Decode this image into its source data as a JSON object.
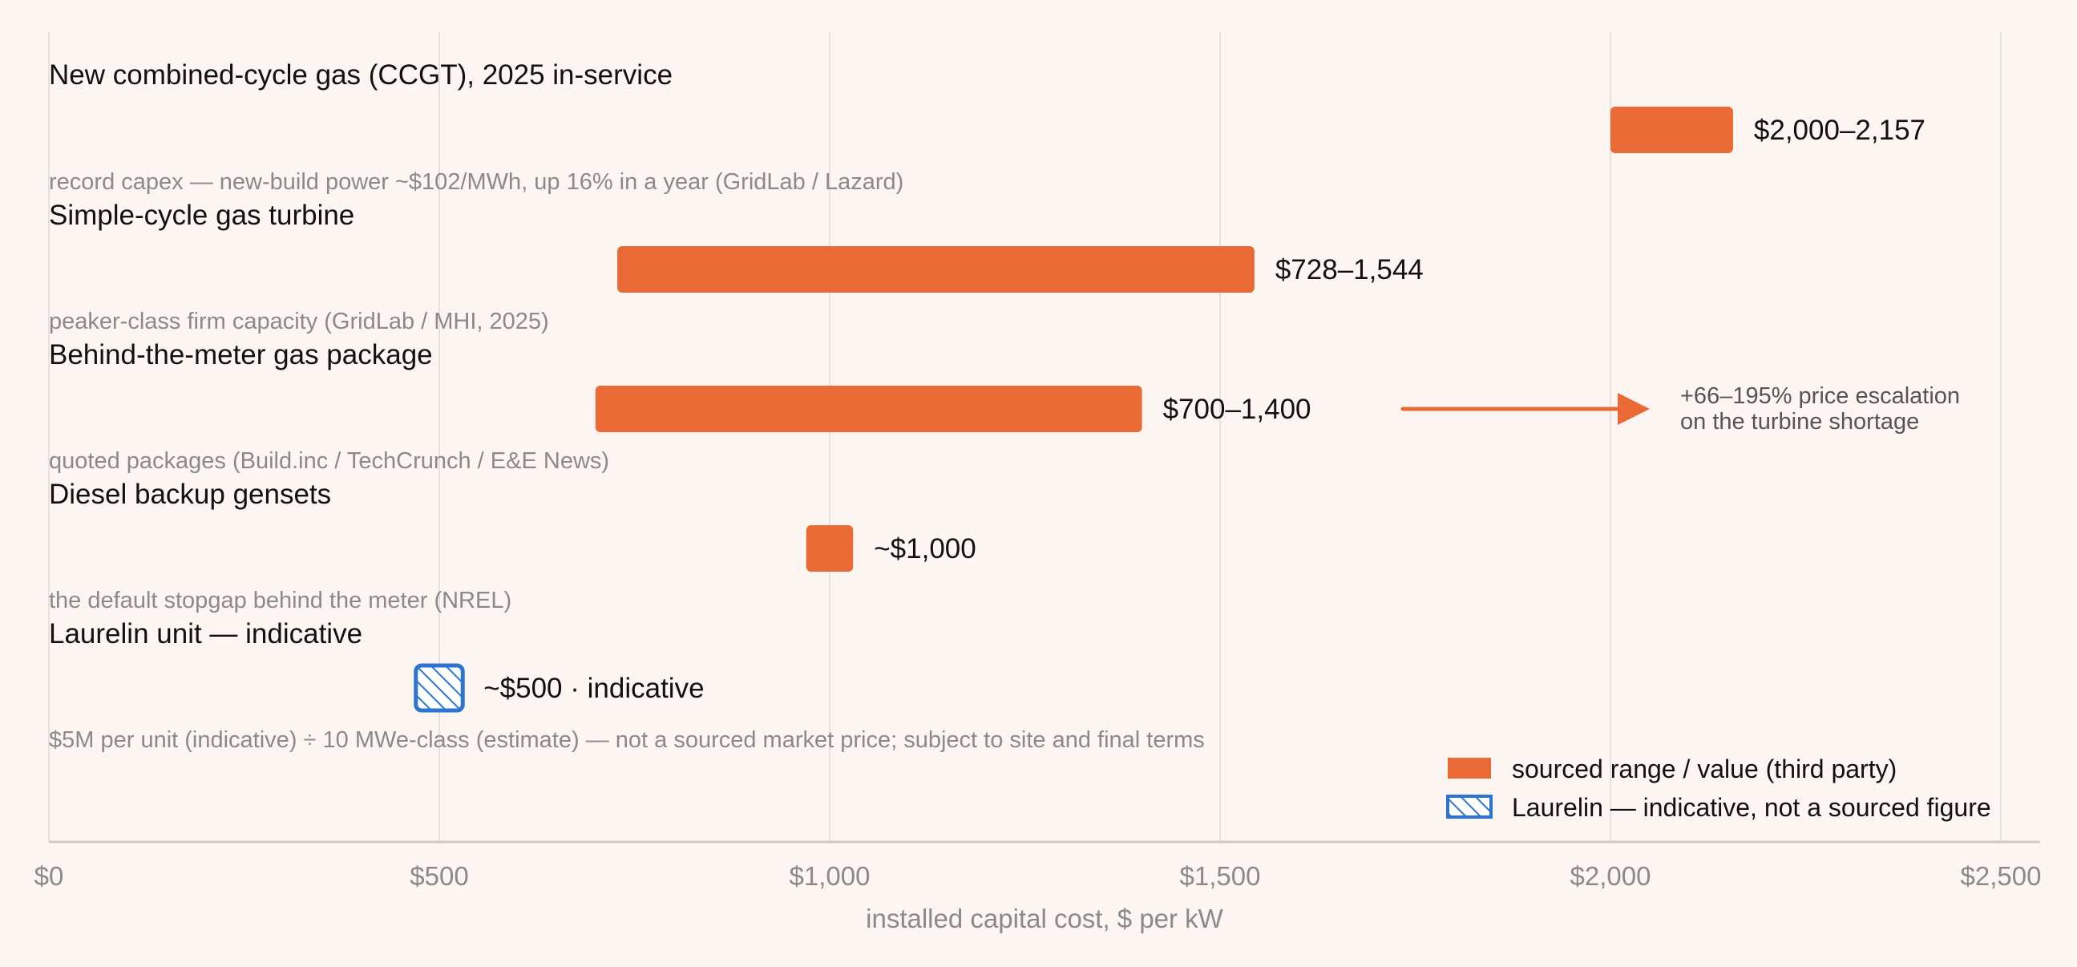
{
  "chart_data": {
    "type": "bar",
    "orientation": "horizontal-range",
    "xlabel": "installed capital cost, $ per kW",
    "xlim": [
      0,
      2550
    ],
    "xticks": [
      0,
      500,
      1000,
      1500,
      2000,
      2500
    ],
    "xtick_labels": [
      "$0",
      "$500",
      "$1,000",
      "$1,500",
      "$2,000",
      "$2,500"
    ],
    "grid": "vertical",
    "rows": [
      {
        "category": "New combined-cycle gas (CCGT), 2025 in-service",
        "low": 2000,
        "high": 2157,
        "value_label": "$2,000–2,157",
        "note": "record capex — new-build power ~$102/MWh, up 16% in a year (GridLab / Lazard)",
        "kind": "sourced"
      },
      {
        "category": "Simple-cycle gas turbine",
        "low": 728,
        "high": 1544,
        "value_label": "$728–1,544",
        "note": "peaker-class firm capacity (GridLab / MHI, 2025)",
        "kind": "sourced"
      },
      {
        "category": "Behind-the-meter gas package",
        "low": 700,
        "high": 1400,
        "value_label": "$700–1,400",
        "note": "quoted packages (Build.inc / TechCrunch / E&E News)",
        "kind": "sourced"
      },
      {
        "category": "Diesel backup gensets",
        "low": 970,
        "high": 1030,
        "value": 1000,
        "value_label": "~$1,000",
        "note": "the default stopgap behind the meter (NREL)",
        "kind": "sourced"
      },
      {
        "category": "Laurelin unit — indicative",
        "low": 470,
        "high": 530,
        "value": 500,
        "value_label": "~$500 · indicative",
        "note": "$5M per unit (indicative) ÷ 10 MWe-class (estimate) — not a sourced market price; subject to site and final terms",
        "kind": "indicative"
      }
    ],
    "annotation": {
      "row": 2,
      "line1": "+66–195% price escalation",
      "line2": "on the turbine shortage"
    },
    "legend": {
      "placement": "bottom-right",
      "items": [
        {
          "label": "sourced range / value (third party)",
          "kind": "sourced"
        },
        {
          "label": "Laurelin — indicative, not a sourced figure",
          "kind": "indicative"
        }
      ]
    },
    "colors": {
      "sourced": "#ea6a35",
      "indicative": "#2b74d1",
      "background": "#fdf5f1",
      "grid": "#e6e1de",
      "axis": "#cfc9c6",
      "title_text": "#111111",
      "note_text": "#8a8a8a",
      "tick_text": "#8a8a8a"
    }
  }
}
